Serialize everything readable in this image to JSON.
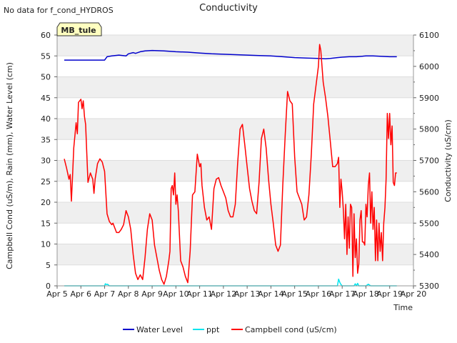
{
  "notice": "No data for f_cond_HYDROS",
  "site_tag": "MB_tule",
  "chart_data": {
    "type": "line",
    "title": "Conductivity",
    "xlabel": "Time",
    "ylabel": "Campbell Cond (uS/m), Rain (mm), Water Level (cm)",
    "y2label": "Conductivity (uS/cm)",
    "xlim": [
      5,
      20
    ],
    "ylim": [
      0,
      60
    ],
    "y2lim": [
      5300,
      6100
    ],
    "x_ticks": [
      {
        "v": 5,
        "label": "Apr 5"
      },
      {
        "v": 6,
        "label": "Apr 6"
      },
      {
        "v": 7,
        "label": "Apr 7"
      },
      {
        "v": 8,
        "label": "Apr 8"
      },
      {
        "v": 9,
        "label": "Apr 9"
      },
      {
        "v": 10,
        "label": "Apr 10"
      },
      {
        "v": 11,
        "label": "Apr 11"
      },
      {
        "v": 12,
        "label": "Apr 12"
      },
      {
        "v": 13,
        "label": "Apr 13"
      },
      {
        "v": 14,
        "label": "Apr 14"
      },
      {
        "v": 15,
        "label": "Apr 15"
      },
      {
        "v": 16,
        "label": "Apr 16"
      },
      {
        "v": 17,
        "label": "Apr 17"
      },
      {
        "v": 18,
        "label": "Apr 18"
      },
      {
        "v": 19,
        "label": "Apr 19"
      },
      {
        "v": 20,
        "label": "Apr 20"
      }
    ],
    "y_ticks": [
      0,
      5,
      10,
      15,
      20,
      25,
      30,
      35,
      40,
      45,
      50,
      55,
      60
    ],
    "y2_ticks": [
      5300,
      5400,
      5500,
      5600,
      5700,
      5800,
      5900,
      6000,
      6100
    ],
    "grid": true,
    "legend_position": "bottom-center",
    "series": [
      {
        "name": "Water Level",
        "color": "#0000cc",
        "axis": "left",
        "x": [
          5.3,
          6.0,
          6.5,
          7.0,
          7.1,
          7.3,
          7.6,
          7.9,
          8.0,
          8.2,
          8.3,
          8.5,
          8.7,
          9.0,
          9.5,
          10.0,
          10.5,
          11.0,
          11.5,
          12.0,
          12.5,
          13.0,
          13.5,
          14.0,
          14.5,
          15.0,
          15.5,
          16.0,
          16.3,
          16.5,
          16.8,
          17.0,
          17.3,
          17.6,
          18.0,
          18.3,
          18.6,
          19.0,
          19.3
        ],
        "values": [
          54.0,
          54.0,
          54.0,
          54.0,
          54.8,
          55.0,
          55.2,
          55.0,
          55.5,
          55.8,
          55.6,
          56.0,
          56.2,
          56.3,
          56.2,
          56.0,
          55.9,
          55.7,
          55.5,
          55.4,
          55.3,
          55.2,
          55.1,
          55.0,
          54.8,
          54.6,
          54.5,
          54.4,
          54.3,
          54.4,
          54.6,
          54.7,
          54.8,
          54.8,
          55.0,
          55.0,
          54.9,
          54.8,
          54.8
        ]
      },
      {
        "name": "ppt",
        "color": "#00e5ee",
        "axis": "left",
        "x": [
          5.3,
          7.0,
          7.03,
          7.08,
          7.12,
          7.2,
          16.8,
          16.85,
          16.9,
          16.95,
          17.0,
          17.5,
          17.55,
          17.6,
          17.65,
          17.7,
          18.0,
          18.1,
          18.2,
          18.5,
          19.3
        ],
        "values": [
          0,
          0,
          0.5,
          0.3,
          0.4,
          0,
          0,
          1.6,
          0.8,
          0.3,
          0,
          0,
          0.5,
          0,
          0.6,
          0,
          0,
          0.4,
          0,
          0,
          0
        ]
      },
      {
        "name": "Campbell cond (uS/cm)",
        "color": "#ff0000",
        "axis": "right",
        "x": [
          5.3,
          5.4,
          5.5,
          5.55,
          5.6,
          5.65,
          5.7,
          5.8,
          5.85,
          5.9,
          6.0,
          6.05,
          6.1,
          6.15,
          6.2,
          6.3,
          6.4,
          6.45,
          6.5,
          6.55,
          6.6,
          6.7,
          6.8,
          6.9,
          7.0,
          7.1,
          7.2,
          7.3,
          7.35,
          7.5,
          7.6,
          7.7,
          7.8,
          7.9,
          8.0,
          8.1,
          8.2,
          8.3,
          8.4,
          8.5,
          8.6,
          8.7,
          8.8,
          8.9,
          9.0,
          9.1,
          9.2,
          9.3,
          9.4,
          9.5,
          9.6,
          9.7,
          9.75,
          9.8,
          9.85,
          9.9,
          9.95,
          10.0,
          10.05,
          10.1,
          10.2,
          10.3,
          10.4,
          10.5,
          10.6,
          10.7,
          10.8,
          10.9,
          11.0,
          11.05,
          11.1,
          11.2,
          11.3,
          11.4,
          11.5,
          11.6,
          11.7,
          11.8,
          11.9,
          12.0,
          12.1,
          12.2,
          12.3,
          12.4,
          12.5,
          12.6,
          12.7,
          12.8,
          12.9,
          13.0,
          13.1,
          13.2,
          13.3,
          13.4,
          13.5,
          13.6,
          13.7,
          13.8,
          13.9,
          14.0,
          14.1,
          14.2,
          14.3,
          14.4,
          14.5,
          14.6,
          14.7,
          14.8,
          14.9,
          15.0,
          15.1,
          15.2,
          15.3,
          15.4,
          15.5,
          15.6,
          15.7,
          15.8,
          15.9,
          16.0,
          16.05,
          16.1,
          16.2,
          16.3,
          16.4,
          16.5,
          16.6,
          16.7,
          16.8,
          16.85,
          16.9,
          16.95,
          17.0,
          17.05,
          17.1,
          17.15,
          17.2,
          17.25,
          17.3,
          17.35,
          17.4,
          17.45,
          17.5,
          17.55,
          17.6,
          17.65,
          17.7,
          17.75,
          17.8,
          17.85,
          17.9,
          17.95,
          18.0,
          18.05,
          18.1,
          18.15,
          18.2,
          18.25,
          18.3,
          18.35,
          18.4,
          18.45,
          18.5,
          18.55,
          18.6,
          18.65,
          18.7,
          18.75,
          18.8,
          18.85,
          18.9,
          18.95,
          19.0,
          19.05,
          19.1,
          19.15,
          19.2,
          19.25,
          19.3
        ],
        "values": [
          5705,
          5675,
          5640,
          5655,
          5570,
          5650,
          5740,
          5820,
          5785,
          5885,
          5895,
          5865,
          5890,
          5840,
          5815,
          5630,
          5660,
          5650,
          5640,
          5595,
          5640,
          5690,
          5705,
          5695,
          5665,
          5530,
          5505,
          5495,
          5500,
          5470,
          5470,
          5480,
          5495,
          5540,
          5520,
          5480,
          5400,
          5340,
          5320,
          5335,
          5320,
          5390,
          5480,
          5530,
          5510,
          5430,
          5390,
          5350,
          5320,
          5305,
          5330,
          5380,
          5410,
          5610,
          5620,
          5590,
          5660,
          5560,
          5590,
          5540,
          5380,
          5360,
          5330,
          5310,
          5410,
          5590,
          5600,
          5720,
          5680,
          5690,
          5620,
          5550,
          5510,
          5520,
          5480,
          5610,
          5640,
          5645,
          5620,
          5600,
          5580,
          5540,
          5520,
          5520,
          5560,
          5690,
          5800,
          5815,
          5750,
          5680,
          5610,
          5570,
          5540,
          5530,
          5630,
          5770,
          5800,
          5740,
          5640,
          5560,
          5500,
          5430,
          5410,
          5430,
          5620,
          5780,
          5920,
          5890,
          5880,
          5710,
          5600,
          5580,
          5560,
          5510,
          5520,
          5590,
          5720,
          5880,
          5940,
          6000,
          6070,
          6050,
          5950,
          5900,
          5840,
          5760,
          5680,
          5680,
          5690,
          5710,
          5550,
          5640,
          5600,
          5540,
          5450,
          5560,
          5400,
          5520,
          5420,
          5560,
          5550,
          5330,
          5530,
          5390,
          5450,
          5340,
          5370,
          5510,
          5540,
          5440,
          5440,
          5430,
          5560,
          5520,
          5620,
          5660,
          5500,
          5600,
          5480,
          5550,
          5380,
          5510,
          5380,
          5500,
          5410,
          5470,
          5380,
          5500,
          5550,
          5640,
          5850,
          5770,
          5850,
          5750,
          5810,
          5630,
          5620,
          5660,
          5660
        ]
      }
    ]
  }
}
